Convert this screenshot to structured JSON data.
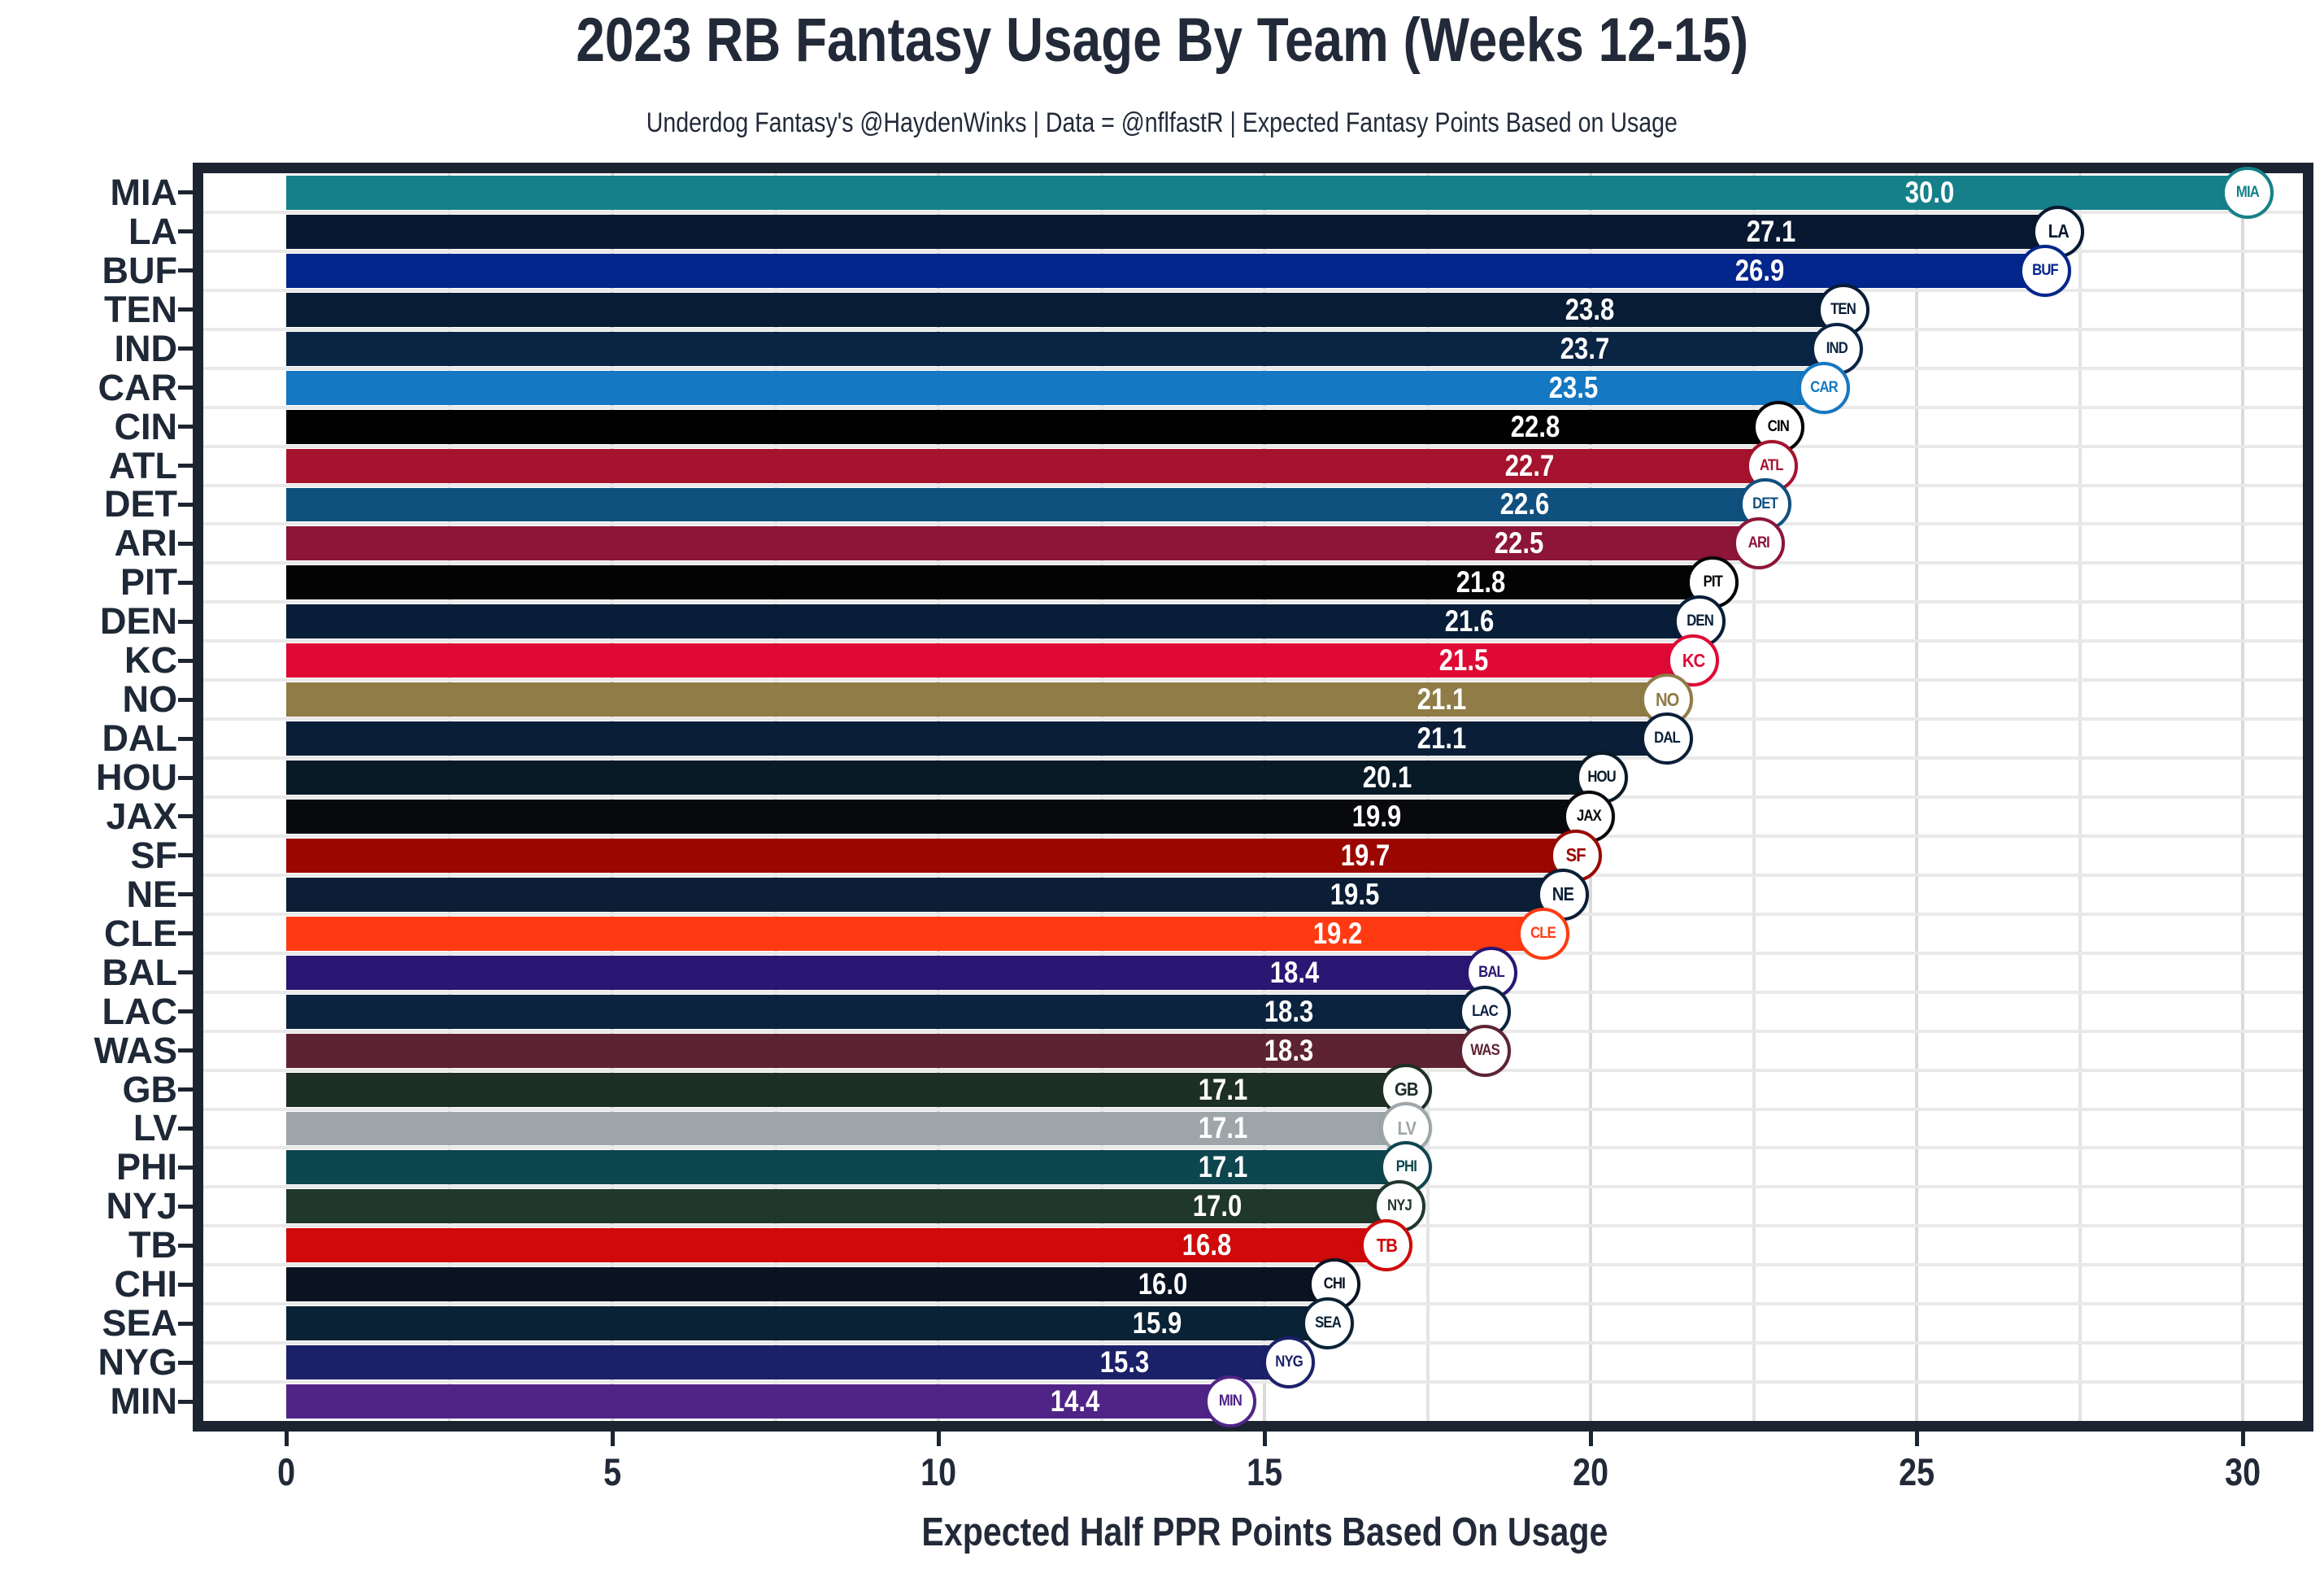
{
  "header": {
    "title": "2023 RB Fantasy Usage By Team (Weeks 12-15)",
    "subtitle": "Underdog Fantasy's @HaydenWinks | Data = @nflfastR | Expected Fantasy Points Based on Usage"
  },
  "chart_data": {
    "type": "bar",
    "orientation": "horizontal",
    "title": "2023 RB Fantasy Usage By Team (Weeks 12-15)",
    "subtitle": "Underdog Fantasy's @HaydenWinks | Data = @nflfastR | Expected Fantasy Points Based on Usage",
    "xlabel": "Expected Half PPR Points Based On Usage",
    "xlim": [
      0,
      30
    ],
    "x_ticks": [
      0,
      5,
      10,
      15,
      20,
      25,
      30
    ],
    "grid": {
      "x_minor_spacing": 2.5,
      "minor_color": "#E4E4E4",
      "major_color": "#DADADA",
      "row_line_color": "#E9E9E9",
      "shown": true
    },
    "frame_color": "#1C2431",
    "text_color": "#222A39",
    "value_label_color": "#FFFFFF",
    "categories": [
      "MIA",
      "LA",
      "BUF",
      "TEN",
      "IND",
      "CAR",
      "CIN",
      "ATL",
      "DET",
      "ARI",
      "PIT",
      "DEN",
      "KC",
      "NO",
      "DAL",
      "HOU",
      "JAX",
      "SF",
      "NE",
      "CLE",
      "BAL",
      "LAC",
      "WAS",
      "GB",
      "LV",
      "PHI",
      "NYJ",
      "TB",
      "CHI",
      "SEA",
      "NYG",
      "MIN"
    ],
    "values": [
      30.0,
      27.1,
      26.9,
      23.8,
      23.7,
      23.5,
      22.8,
      22.7,
      22.6,
      22.5,
      21.8,
      21.6,
      21.5,
      21.1,
      21.1,
      20.1,
      19.9,
      19.7,
      19.5,
      19.2,
      18.4,
      18.3,
      18.3,
      17.1,
      17.1,
      17.1,
      17.0,
      16.8,
      16.0,
      15.9,
      15.3,
      14.4
    ],
    "teams": [
      {
        "abbr": "MIA",
        "value": 30.0,
        "label": "30.0",
        "color": "#15808A"
      },
      {
        "abbr": "LA",
        "value": 27.1,
        "label": "27.1",
        "color": "#071830"
      },
      {
        "abbr": "BUF",
        "value": 26.9,
        "label": "26.9",
        "color": "#03268C"
      },
      {
        "abbr": "TEN",
        "value": 23.8,
        "label": "23.8",
        "color": "#081C36"
      },
      {
        "abbr": "IND",
        "value": 23.7,
        "label": "23.7",
        "color": "#0A2444"
      },
      {
        "abbr": "CAR",
        "value": 23.5,
        "label": "23.5",
        "color": "#1478C2"
      },
      {
        "abbr": "CIN",
        "value": 22.8,
        "label": "22.8",
        "color": "#010101"
      },
      {
        "abbr": "ATL",
        "value": 22.7,
        "label": "22.7",
        "color": "#A5132E"
      },
      {
        "abbr": "DET",
        "value": 22.6,
        "label": "22.6",
        "color": "#10507E"
      },
      {
        "abbr": "ARI",
        "value": 22.5,
        "label": "22.5",
        "color": "#8C1538"
      },
      {
        "abbr": "PIT",
        "value": 21.8,
        "label": "21.8",
        "color": "#030303"
      },
      {
        "abbr": "DEN",
        "value": 21.6,
        "label": "21.6",
        "color": "#081E38"
      },
      {
        "abbr": "KC",
        "value": 21.5,
        "label": "21.5",
        "color": "#E00935"
      },
      {
        "abbr": "NO",
        "value": 21.1,
        "label": "21.1",
        "color": "#8F7C46"
      },
      {
        "abbr": "DAL",
        "value": 21.1,
        "label": "21.1",
        "color": "#0A1E38"
      },
      {
        "abbr": "HOU",
        "value": 20.1,
        "label": "20.1",
        "color": "#081A26"
      },
      {
        "abbr": "JAX",
        "value": 19.9,
        "label": "19.9",
        "color": "#07090D"
      },
      {
        "abbr": "SF",
        "value": 19.7,
        "label": "19.7",
        "color": "#9B0700"
      },
      {
        "abbr": "NE",
        "value": 19.5,
        "label": "19.5",
        "color": "#0B1E36"
      },
      {
        "abbr": "CLE",
        "value": 19.2,
        "label": "19.2",
        "color": "#FF3A13"
      },
      {
        "abbr": "BAL",
        "value": 18.4,
        "label": "18.4",
        "color": "#2A1673"
      },
      {
        "abbr": "LAC",
        "value": 18.3,
        "label": "18.3",
        "color": "#0C2340"
      },
      {
        "abbr": "WAS",
        "value": 18.3,
        "label": "18.3",
        "color": "#5E2333"
      },
      {
        "abbr": "GB",
        "value": 17.1,
        "label": "17.1",
        "color": "#1E2F25"
      },
      {
        "abbr": "LV",
        "value": 17.1,
        "label": "17.1",
        "color": "#9EA6AA"
      },
      {
        "abbr": "PHI",
        "value": 17.1,
        "label": "17.1",
        "color": "#0D464E"
      },
      {
        "abbr": "NYJ",
        "value": 17.0,
        "label": "17.0",
        "color": "#20372B"
      },
      {
        "abbr": "TB",
        "value": 16.8,
        "label": "16.8",
        "color": "#D00909"
      },
      {
        "abbr": "CHI",
        "value": 16.0,
        "label": "16.0",
        "color": "#0A1322"
      },
      {
        "abbr": "SEA",
        "value": 15.9,
        "label": "15.9",
        "color": "#0A2236"
      },
      {
        "abbr": "NYG",
        "value": 15.3,
        "label": "15.3",
        "color": "#1B2168"
      },
      {
        "abbr": "MIN",
        "value": 14.4,
        "label": "14.4",
        "color": "#502487"
      }
    ]
  }
}
